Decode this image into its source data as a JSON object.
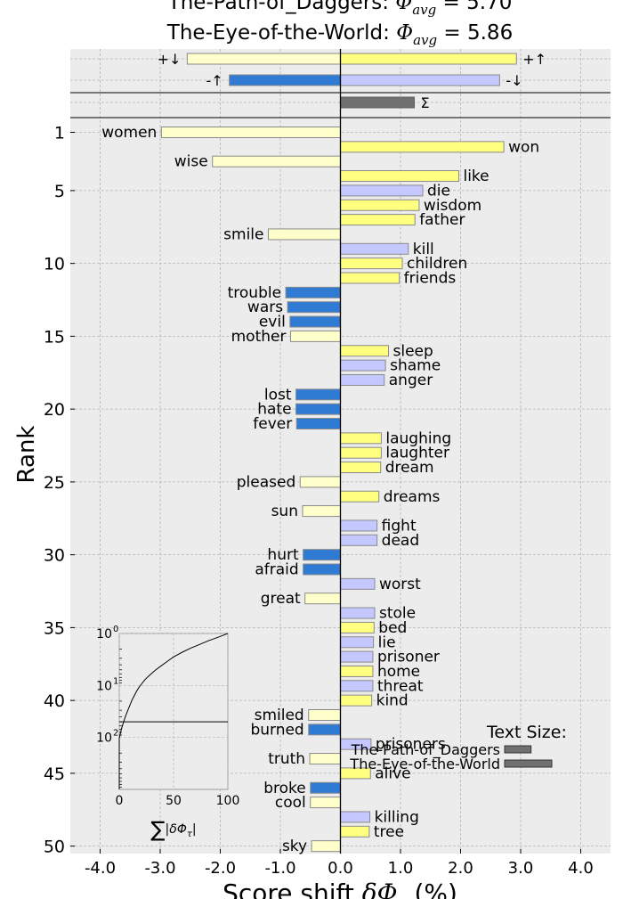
{
  "chart_data": {
    "type": "bar",
    "title_lines": [
      "The-Path-of_Daggers: Φavg = 5.70",
      "The-Eye-of-the-World: Φavg = 5.86"
    ],
    "title_parts": [
      {
        "name": "The-Path-of_Daggers",
        "phi_label": "Φ",
        "phi_sub": "avg",
        "value_text": "= 5.70"
      },
      {
        "name": "The-Eye-of-the-World",
        "phi_label": "Φ",
        "phi_sub": "avg",
        "value_text": "= 5.86"
      }
    ],
    "xlabel": "Score shift δΦτ (%)",
    "xlabel_main": "Score shift ",
    "xlabel_delta": "δΦ",
    "xlabel_sub": "τ",
    "xlabel_unit": " (%)",
    "ylabel": "Rank",
    "xlim": [
      -4.5,
      4.5
    ],
    "xticks": [
      -4,
      -3,
      -2,
      -1,
      0,
      1,
      2,
      3,
      4
    ],
    "xtick_labels": [
      "-4.0",
      "-3.0",
      "-2.0",
      "-1.0",
      "0.0",
      "1.0",
      "2.0",
      "3.0",
      "4.0"
    ],
    "yticks": [
      1,
      5,
      10,
      15,
      20,
      25,
      30,
      35,
      40,
      45,
      50
    ],
    "grid": true,
    "colors": {
      "pos_up": "#ffff80",
      "neg_down": "#ffffcc",
      "neg_up": "#2f7bd4",
      "pos_down": "#c4c8ff",
      "sum": "#707070",
      "background": "#ececec",
      "bar_edge": "#8a8a8a"
    },
    "summary": [
      {
        "label": "+↓",
        "value": -2.55,
        "kind": "neg_down"
      },
      {
        "label": "+↑",
        "value": 2.93,
        "kind": "pos_up"
      },
      {
        "label": "-↑",
        "value": -1.85,
        "kind": "neg_up"
      },
      {
        "label": "-↓",
        "value": 2.65,
        "kind": "pos_down"
      },
      {
        "label": "Σ",
        "value": 1.23,
        "kind": "sum"
      }
    ],
    "words": [
      {
        "rank": 1,
        "word": "women",
        "value": -2.98,
        "kind": "neg_down"
      },
      {
        "rank": 2,
        "word": "won",
        "value": 2.72,
        "kind": "pos_up"
      },
      {
        "rank": 3,
        "word": "wise",
        "value": -2.13,
        "kind": "neg_down"
      },
      {
        "rank": 4,
        "word": "like",
        "value": 1.97,
        "kind": "pos_up"
      },
      {
        "rank": 5,
        "word": "die",
        "value": 1.37,
        "kind": "pos_down"
      },
      {
        "rank": 6,
        "word": "wisdom",
        "value": 1.31,
        "kind": "pos_up"
      },
      {
        "rank": 7,
        "word": "father",
        "value": 1.24,
        "kind": "pos_up"
      },
      {
        "rank": 8,
        "word": "smile",
        "value": -1.2,
        "kind": "neg_down"
      },
      {
        "rank": 9,
        "word": "kill",
        "value": 1.13,
        "kind": "pos_down"
      },
      {
        "rank": 10,
        "word": "children",
        "value": 1.03,
        "kind": "pos_up"
      },
      {
        "rank": 11,
        "word": "friends",
        "value": 0.98,
        "kind": "pos_up"
      },
      {
        "rank": 12,
        "word": "trouble",
        "value": -0.91,
        "kind": "neg_up"
      },
      {
        "rank": 13,
        "word": "wars",
        "value": -0.88,
        "kind": "neg_up"
      },
      {
        "rank": 14,
        "word": "evil",
        "value": -0.84,
        "kind": "neg_up"
      },
      {
        "rank": 15,
        "word": "mother",
        "value": -0.83,
        "kind": "neg_down"
      },
      {
        "rank": 16,
        "word": "sleep",
        "value": 0.8,
        "kind": "pos_up"
      },
      {
        "rank": 17,
        "word": "shame",
        "value": 0.75,
        "kind": "pos_down"
      },
      {
        "rank": 18,
        "word": "anger",
        "value": 0.73,
        "kind": "pos_down"
      },
      {
        "rank": 19,
        "word": "lost",
        "value": -0.74,
        "kind": "neg_up"
      },
      {
        "rank": 20,
        "word": "hate",
        "value": -0.74,
        "kind": "neg_up"
      },
      {
        "rank": 21,
        "word": "fever",
        "value": -0.73,
        "kind": "neg_up"
      },
      {
        "rank": 22,
        "word": "laughing",
        "value": 0.68,
        "kind": "pos_up"
      },
      {
        "rank": 23,
        "word": "laughter",
        "value": 0.68,
        "kind": "pos_up"
      },
      {
        "rank": 24,
        "word": "dream",
        "value": 0.67,
        "kind": "pos_up"
      },
      {
        "rank": 25,
        "word": "pleased",
        "value": -0.67,
        "kind": "neg_down"
      },
      {
        "rank": 26,
        "word": "dreams",
        "value": 0.64,
        "kind": "pos_up"
      },
      {
        "rank": 27,
        "word": "sun",
        "value": -0.63,
        "kind": "neg_down"
      },
      {
        "rank": 28,
        "word": "fight",
        "value": 0.61,
        "kind": "pos_down"
      },
      {
        "rank": 29,
        "word": "dead",
        "value": 0.61,
        "kind": "pos_down"
      },
      {
        "rank": 30,
        "word": "hurt",
        "value": -0.62,
        "kind": "neg_up"
      },
      {
        "rank": 31,
        "word": "afraid",
        "value": -0.62,
        "kind": "neg_up"
      },
      {
        "rank": 32,
        "word": "worst",
        "value": 0.57,
        "kind": "pos_down"
      },
      {
        "rank": 33,
        "word": "great",
        "value": -0.59,
        "kind": "neg_down"
      },
      {
        "rank": 34,
        "word": "stole",
        "value": 0.57,
        "kind": "pos_down"
      },
      {
        "rank": 35,
        "word": "bed",
        "value": 0.56,
        "kind": "pos_up"
      },
      {
        "rank": 36,
        "word": "lie",
        "value": 0.55,
        "kind": "pos_down"
      },
      {
        "rank": 37,
        "word": "prisoner",
        "value": 0.54,
        "kind": "pos_down"
      },
      {
        "rank": 38,
        "word": "home",
        "value": 0.54,
        "kind": "pos_up"
      },
      {
        "rank": 39,
        "word": "threat",
        "value": 0.54,
        "kind": "pos_down"
      },
      {
        "rank": 40,
        "word": "kind",
        "value": 0.52,
        "kind": "pos_up"
      },
      {
        "rank": 41,
        "word": "smiled",
        "value": -0.53,
        "kind": "neg_down"
      },
      {
        "rank": 42,
        "word": "burned",
        "value": -0.53,
        "kind": "neg_up"
      },
      {
        "rank": 43,
        "word": "prisoners",
        "value": 0.51,
        "kind": "pos_down"
      },
      {
        "rank": 44,
        "word": "truth",
        "value": -0.51,
        "kind": "neg_down"
      },
      {
        "rank": 45,
        "word": "alive",
        "value": 0.5,
        "kind": "pos_up"
      },
      {
        "rank": 46,
        "word": "broke",
        "value": -0.5,
        "kind": "neg_up"
      },
      {
        "rank": 47,
        "word": "cool",
        "value": -0.5,
        "kind": "neg_down"
      },
      {
        "rank": 48,
        "word": "killing",
        "value": 0.49,
        "kind": "pos_down"
      },
      {
        "rank": 49,
        "word": "tree",
        "value": 0.48,
        "kind": "pos_up"
      },
      {
        "rank": 50,
        "word": "sky",
        "value": -0.48,
        "kind": "neg_down"
      }
    ],
    "text_size_legend": {
      "title": "Text Size:",
      "entries": [
        {
          "name": "The-Path-of_Daggers",
          "relative_size": 0.56
        },
        {
          "name": "The-Eye-of-the-World",
          "relative_size": 1.0
        }
      ]
    },
    "inset": {
      "xlim": [
        0,
        100
      ],
      "xticks": [
        0,
        50,
        100
      ],
      "ytick_labels": [
        "10",
        "10",
        "10"
      ],
      "ytick_exponents": [
        "0",
        "1",
        "2"
      ],
      "y_scale": "log",
      "xlabel_sum": "∑",
      "xlabel_delta": "|δΦ",
      "xlabel_sub": "τ",
      "xlabel_close": "|",
      "cumulative": {
        "x": [
          100,
          90,
          82,
          74,
          66,
          58,
          50,
          44,
          38,
          33,
          28,
          24,
          21,
          18,
          16,
          14,
          12,
          10,
          8,
          6,
          4,
          2,
          1,
          0
        ],
        "log_rank": [
          0.0,
          0.08,
          0.14,
          0.21,
          0.28,
          0.36,
          0.45,
          0.54,
          0.63,
          0.71,
          0.8,
          0.88,
          0.96,
          1.04,
          1.11,
          1.19,
          1.27,
          1.37,
          1.47,
          1.58,
          1.7,
          1.84,
          1.93,
          2.02
        ]
      },
      "reference_log_rank": 1.699
    }
  }
}
